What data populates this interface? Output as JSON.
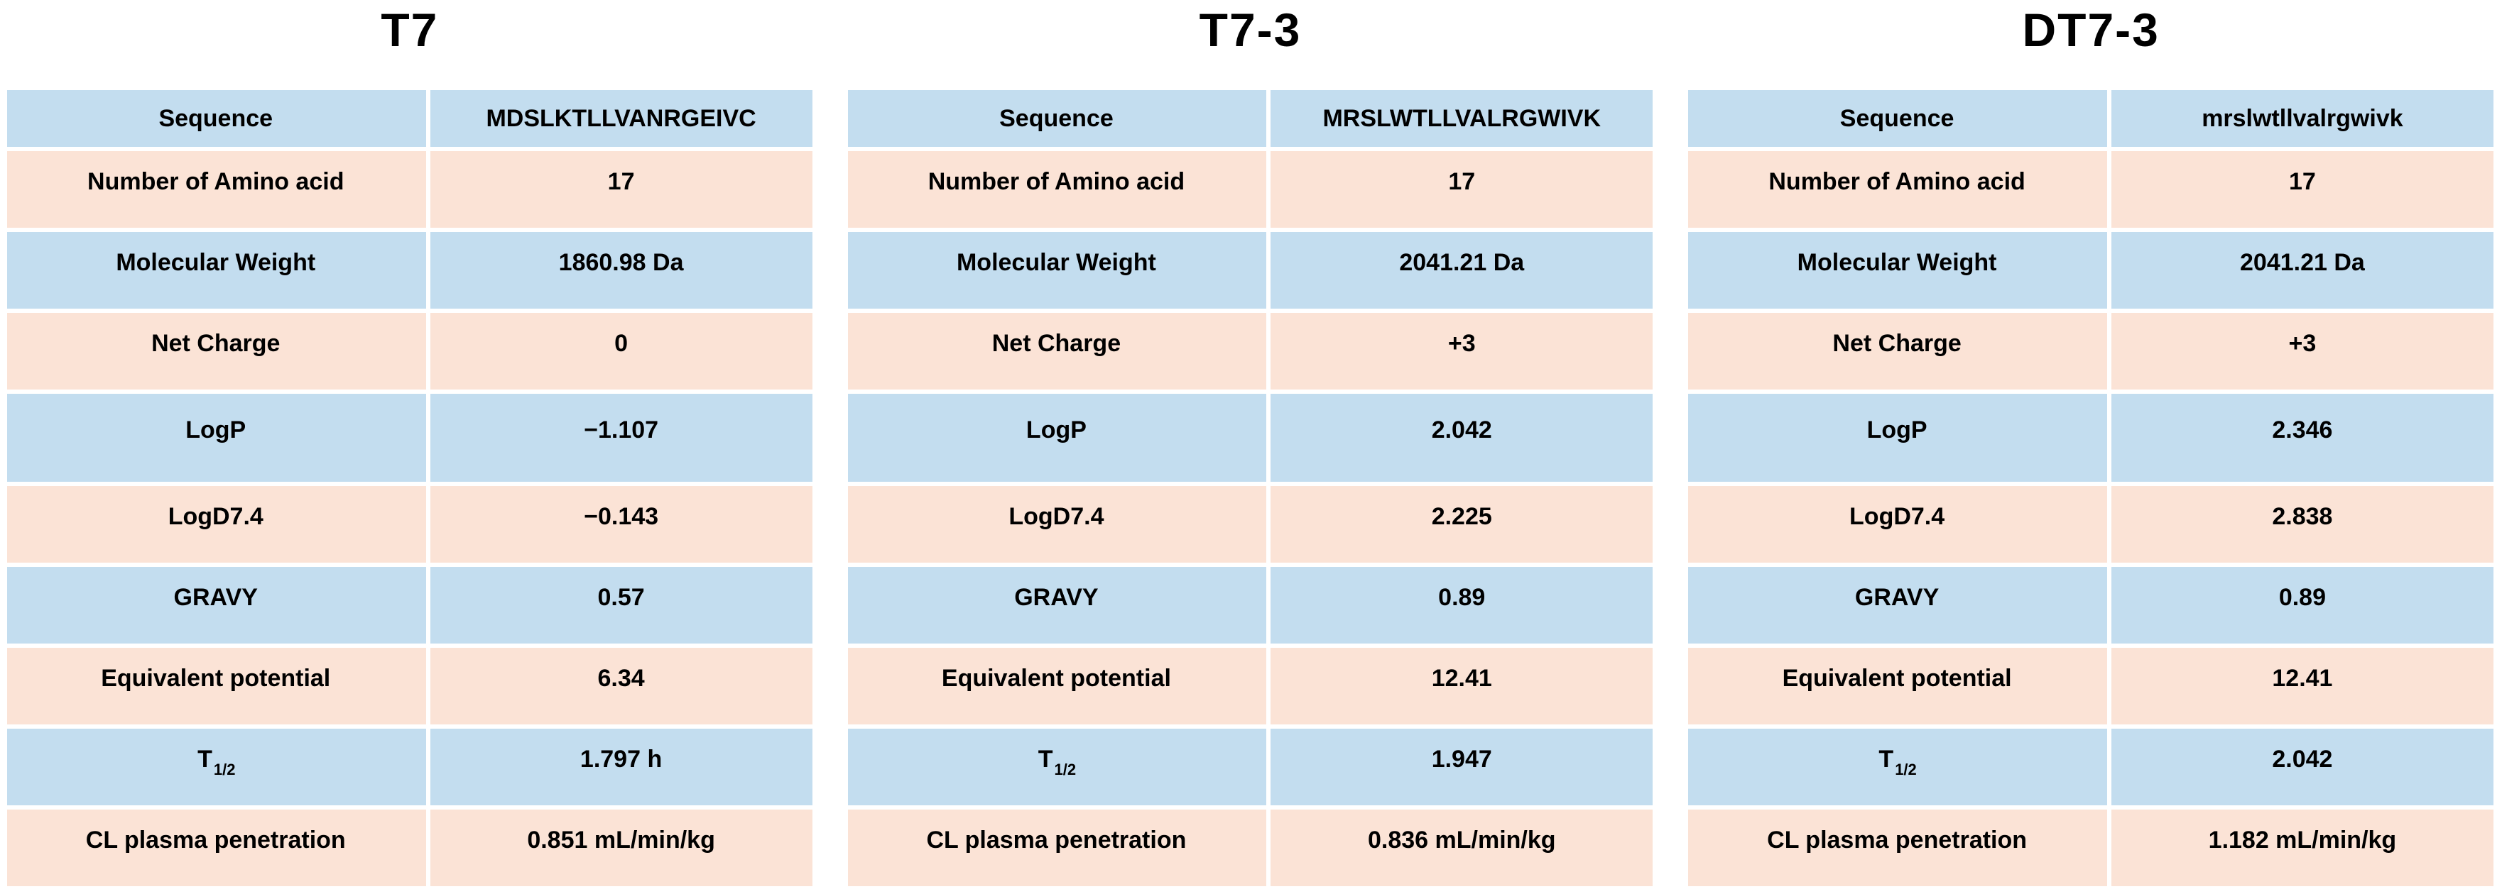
{
  "colors": {
    "row_blue": "#c3ddef",
    "row_pink": "#fbe3d6",
    "text": "#000000",
    "background": "#ffffff"
  },
  "tables": [
    {
      "title": "T7",
      "rows": [
        {
          "label": "Sequence",
          "value": "MDSLKTLLVANRGEIVC"
        },
        {
          "label": "Number of Amino acid",
          "value": "17"
        },
        {
          "label": "Molecular Weight",
          "value": "1860.98 Da"
        },
        {
          "label": "Net Charge",
          "value": "0"
        },
        {
          "label": "LogP",
          "value": "−1.107"
        },
        {
          "label": "LogD7.4",
          "value": "−0.143"
        },
        {
          "label": "GRAVY",
          "value": "0.57"
        },
        {
          "label": "Equivalent potential",
          "value": "6.34"
        },
        {
          "label": "T",
          "label_sub": "1/2",
          "value": "1.797 h"
        },
        {
          "label": "CL plasma penetration",
          "value": "0.851 mL/min/kg"
        }
      ]
    },
    {
      "title": "T7-3",
      "rows": [
        {
          "label": "Sequence",
          "value": "MRSLWTLLVALRGWIVK"
        },
        {
          "label": "Number of Amino acid",
          "value": "17"
        },
        {
          "label": "Molecular Weight",
          "value": "2041.21 Da"
        },
        {
          "label": "Net Charge",
          "value": "+3"
        },
        {
          "label": "LogP",
          "value": "2.042"
        },
        {
          "label": "LogD7.4",
          "value": "2.225"
        },
        {
          "label": "GRAVY",
          "value": "0.89"
        },
        {
          "label": "Equivalent potential",
          "value": "12.41"
        },
        {
          "label": "T",
          "label_sub": "1/2",
          "value": "1.947"
        },
        {
          "label": "CL plasma penetration",
          "value": "0.836 mL/min/kg"
        }
      ]
    },
    {
      "title": "DT7-3",
      "rows": [
        {
          "label": "Sequence",
          "value": "mrslwtllvalrgwivk"
        },
        {
          "label": "Number of Amino acid",
          "value": "17"
        },
        {
          "label": "Molecular Weight",
          "value": "2041.21 Da"
        },
        {
          "label": "Net Charge",
          "value": "+3"
        },
        {
          "label": "LogP",
          "value": "2.346"
        },
        {
          "label": "LogD7.4",
          "value": "2.838"
        },
        {
          "label": "GRAVY",
          "value": "0.89"
        },
        {
          "label": "Equivalent potential",
          "value": "12.41"
        },
        {
          "label": "T",
          "label_sub": "1/2",
          "value": "2.042"
        },
        {
          "label": "CL plasma penetration",
          "value": "1.182 mL/min/kg"
        }
      ]
    }
  ]
}
